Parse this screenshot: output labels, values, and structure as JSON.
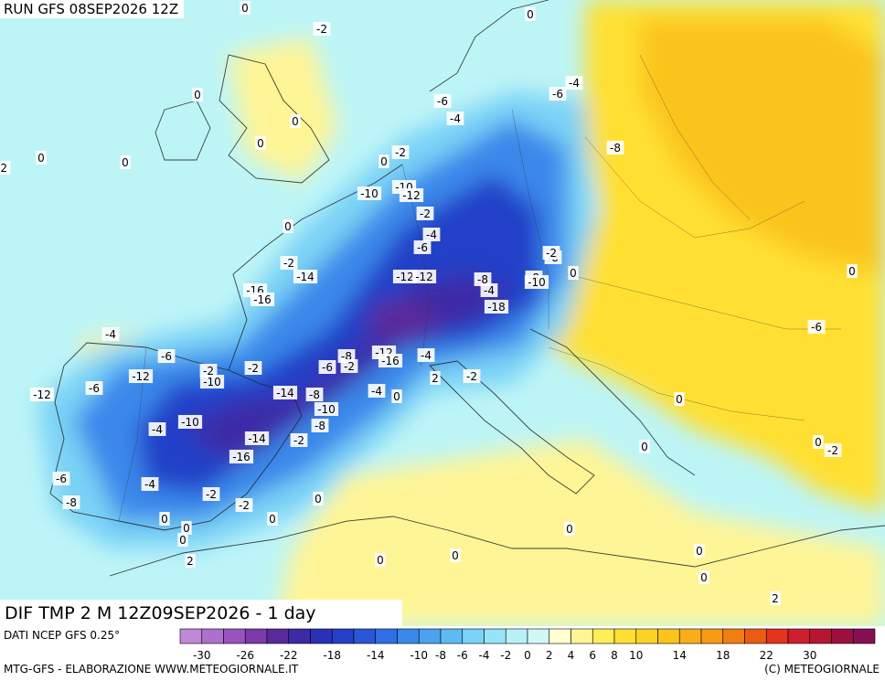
{
  "header": {
    "run_label": "RUN GFS 08SEP2026 12Z"
  },
  "map": {
    "title": "DIF TMP 2 M 12Z09SEP2026 - 1 day",
    "contour_labels": [
      "-2",
      "0",
      "0",
      "0",
      "0",
      "0",
      "0",
      "0",
      "-2",
      "-6",
      "-4",
      "-2",
      "0",
      "-4",
      "-6",
      "-8",
      "-10",
      "-10",
      "-12",
      "-2",
      "-4",
      "-6",
      "0",
      "-2",
      "-14",
      "-16",
      "-16",
      "-12",
      "-12",
      "-8",
      "-8",
      "-4",
      "0",
      "0",
      "-6",
      "-8",
      "-2",
      "-18",
      "-10",
      "-12",
      "-16",
      "-4",
      "-8",
      "-2",
      "-6",
      "-2",
      "-2",
      "-6",
      "-12",
      "-10",
      "-14",
      "-8",
      "-10",
      "-4",
      "-10",
      "-14",
      "-16",
      "-8",
      "-2",
      "-4",
      "0",
      "2",
      "-2",
      "-4",
      "-6",
      "-12",
      "-6",
      "-8",
      "-4",
      "-2",
      "-2",
      "0",
      "0",
      "0",
      "0",
      "0",
      "2",
      "0",
      "0",
      "0",
      "0",
      "0",
      "2",
      "0",
      "0",
      "0",
      "-2"
    ],
    "colors": {
      "sea_base": "#bdf5f7",
      "land_warm": "#ffe033",
      "land_orange": "#fbc41a",
      "cold_core": "#2c30b6",
      "cold_deep": "#5a2a9a"
    }
  },
  "footer": {
    "source": "DATI NCEP GFS 0.25°",
    "credit_left": "MTG-GFS - ELABORAZIONE WWW.METEOGIORNALE.IT",
    "credit_right": "(C) METEOGIORNALE"
  },
  "legend": {
    "colors": [
      "#c088d8",
      "#ad70cc",
      "#9a52bd",
      "#7e39ad",
      "#5a2a9a",
      "#3c2aa6",
      "#2c30b6",
      "#2440c8",
      "#2a56d8",
      "#2f6ee4",
      "#3a88ea",
      "#4aa2ee",
      "#5ebaf2",
      "#7ad2f6",
      "#96e4f8",
      "#b8f2f8",
      "#d2f8f6",
      "#ffffd0",
      "#fff596",
      "#ffee55",
      "#ffe033",
      "#fdd226",
      "#fbc41a",
      "#f8ae18",
      "#f69a14",
      "#f27d10",
      "#ec5b14",
      "#e2341e",
      "#cf1e2e",
      "#b61630",
      "#9e1040",
      "#841052"
    ],
    "ticks": [
      "-30",
      "-26",
      "-22",
      "-18",
      "-14",
      "-10",
      "-8",
      "-6",
      "-4",
      "-2",
      "0",
      "2",
      "4",
      "6",
      "8",
      "10",
      "14",
      "18",
      "22",
      "30"
    ]
  }
}
